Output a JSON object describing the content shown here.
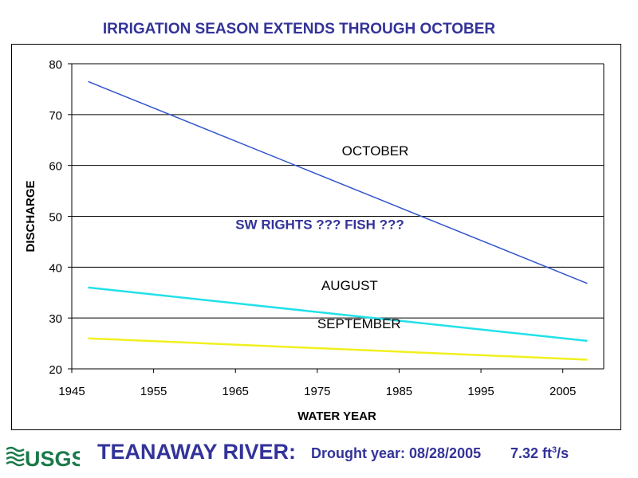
{
  "title": "IRRIGATION SEASON EXTENDS THROUGH OCTOBER",
  "chart_data": {
    "type": "line",
    "xlabel": "WATER YEAR",
    "ylabel": "DISCHARGE",
    "xlim": [
      1945,
      2010
    ],
    "ylim": [
      20,
      80
    ],
    "xticks": [
      1945,
      1955,
      1965,
      1975,
      1985,
      1995,
      2005
    ],
    "yticks": [
      20,
      30,
      40,
      50,
      60,
      70,
      80
    ],
    "grid": "horizontal",
    "legend": "none",
    "series": [
      {
        "name": "OCTOBER",
        "color": "#3355cc",
        "x": [
          1947,
          2008
        ],
        "y": [
          76.5,
          36.8
        ]
      },
      {
        "name": "AUGUST",
        "color": "#22e0e8",
        "x": [
          1947,
          2008
        ],
        "y": [
          36.0,
          25.5
        ]
      },
      {
        "name": "SEPTEMBER",
        "color": "#f0f020",
        "x": [
          1947,
          2008
        ],
        "y": [
          26.0,
          21.8
        ]
      }
    ],
    "annotations": [
      {
        "text": "OCTOBER",
        "x": 1978,
        "y": 62
      },
      {
        "text": "AUGUST",
        "x": 1975.5,
        "y": 35.5
      },
      {
        "text": "SEPTEMBER",
        "x": 1975,
        "y": 28
      },
      {
        "text": "SW RIGHTS ???  FISH ???",
        "x": 1965,
        "y": 47.5
      }
    ]
  },
  "footer": {
    "logo_text": "USGS",
    "river": "TEANAWAY RIVER:",
    "drought": "Drought year: 08/28/2005",
    "flow_value": "7.32 ft",
    "flow_exp": "3",
    "flow_unit": "/s"
  }
}
